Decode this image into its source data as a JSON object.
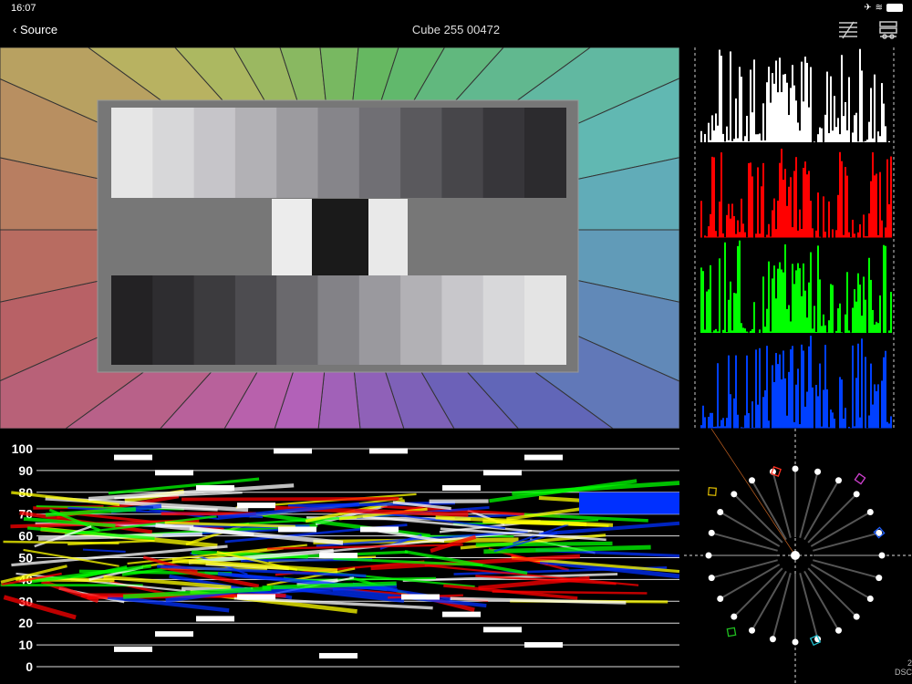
{
  "status": {
    "time": "16:07",
    "icons": [
      "airplane-icon",
      "wifi-icon",
      "battery-icon"
    ]
  },
  "nav": {
    "back_label": "Source",
    "title": "Cube 255 00472",
    "buttons": [
      "adjustments-icon",
      "layers-settings-icon"
    ]
  },
  "chart_grays": {
    "top_row": [
      "#e6e6e6",
      "#d7d7d9",
      "#c6c5c9",
      "#b2b1b5",
      "#9c9b9f",
      "#86858a",
      "#706f74",
      "#5a595d",
      "#47464a",
      "#37363a",
      "#2c2b2e"
    ],
    "middle": [
      "#ececec",
      "#1a1a1a",
      "#e9e9e9"
    ],
    "bottom_row": [
      "#232224",
      "#2e2d30",
      "#3c3b3e",
      "#4d4c50",
      "#6a696d",
      "#838287",
      "#9a999e",
      "#b2b1b5",
      "#c8c7cb",
      "#d8d8da",
      "#e4e4e4"
    ]
  },
  "waveform": {
    "scale_labels": [
      "100",
      "90",
      "80",
      "70",
      "60",
      "50",
      "40",
      "30",
      "20",
      "10",
      "0"
    ]
  },
  "histogram": {
    "channels": [
      "luma",
      "red",
      "green",
      "blue"
    ],
    "colors": [
      "#ffffff",
      "#ff0000",
      "#00ff00",
      "#0040ff"
    ]
  },
  "vectorscope": {
    "targets": [
      {
        "name": "red",
        "color": "#ff3020"
      },
      {
        "name": "magenta",
        "color": "#d040d0"
      },
      {
        "name": "blue",
        "color": "#2060ff"
      },
      {
        "name": "cyan",
        "color": "#20c0d0"
      },
      {
        "name": "green",
        "color": "#20c020"
      },
      {
        "name": "yellow",
        "color": "#d0b000"
      }
    ]
  },
  "overlay": {
    "line1": "2",
    "line2": "DSC"
  }
}
